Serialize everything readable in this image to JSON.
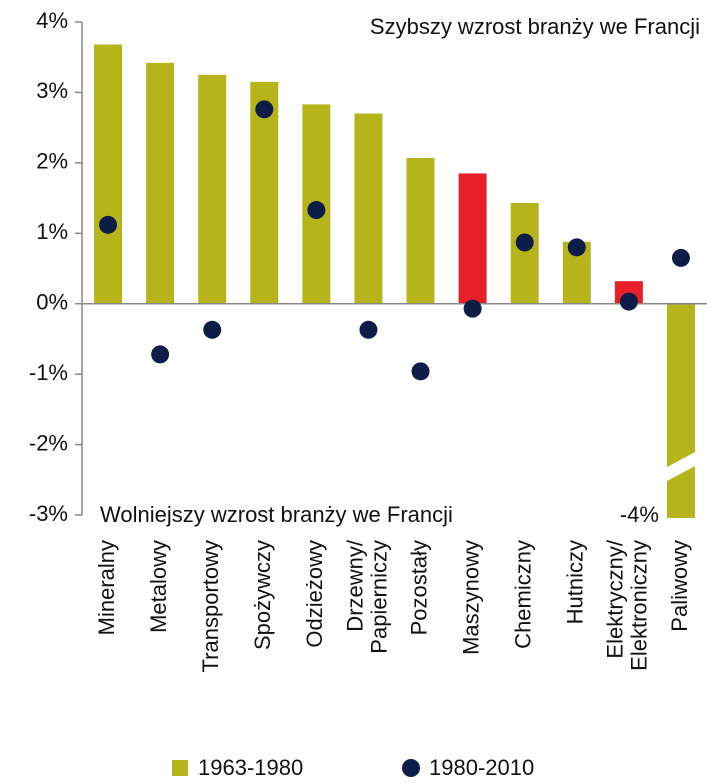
{
  "chart_data": {
    "type": "bar",
    "annotations": [
      "Szybszy wzrost branży we Francji",
      "Wolniejszy wzrost branży we Francji"
    ],
    "categories": [
      [
        "Mineralny"
      ],
      [
        "Metalowy"
      ],
      [
        "Transportowy"
      ],
      [
        "Spożywczy"
      ],
      [
        "Odzieżowy"
      ],
      [
        "Drzewny/",
        "Papierniczy"
      ],
      [
        "Pozostały"
      ],
      [
        "Maszynowy"
      ],
      [
        "Chemiczny"
      ],
      [
        "Hutniczy"
      ],
      [
        "Elektryczny/",
        "Elektroniczny"
      ],
      [
        "Paliwowy"
      ]
    ],
    "series": [
      {
        "name": "1963-1980",
        "type": "bar",
        "color": "#b5b41b",
        "colors": [
          "#b5b41b",
          "#b5b41b",
          "#b5b41b",
          "#b5b41b",
          "#b5b41b",
          "#b5b41b",
          "#b5b41b",
          "#e8202a",
          "#b5b41b",
          "#b5b41b",
          "#e8202a",
          "#b5b41b"
        ],
        "values": [
          3.68,
          3.42,
          3.25,
          3.15,
          2.83,
          2.7,
          2.07,
          1.85,
          1.43,
          0.88,
          0.32,
          -4
        ],
        "value_labels": [
          null,
          null,
          null,
          null,
          null,
          null,
          null,
          null,
          null,
          null,
          null,
          "-4%"
        ]
      },
      {
        "name": "1980-2010",
        "type": "scatter",
        "color": "#0e1d48",
        "values": [
          1.12,
          -0.72,
          -0.37,
          2.76,
          1.33,
          -0.37,
          -0.96,
          -0.07,
          0.87,
          0.8,
          0.03,
          0.65
        ]
      }
    ],
    "ylim": [
      -3,
      4
    ],
    "yticks": [
      {
        "value": -3,
        "label": "-3%"
      },
      {
        "value": -2,
        "label": "-2%"
      },
      {
        "value": -1,
        "label": "-1%"
      },
      {
        "value": 0,
        "label": "0%"
      },
      {
        "value": 1,
        "label": "1%"
      },
      {
        "value": 2,
        "label": "2%"
      },
      {
        "value": 3,
        "label": "3%"
      },
      {
        "value": 4,
        "label": "4%"
      }
    ]
  }
}
